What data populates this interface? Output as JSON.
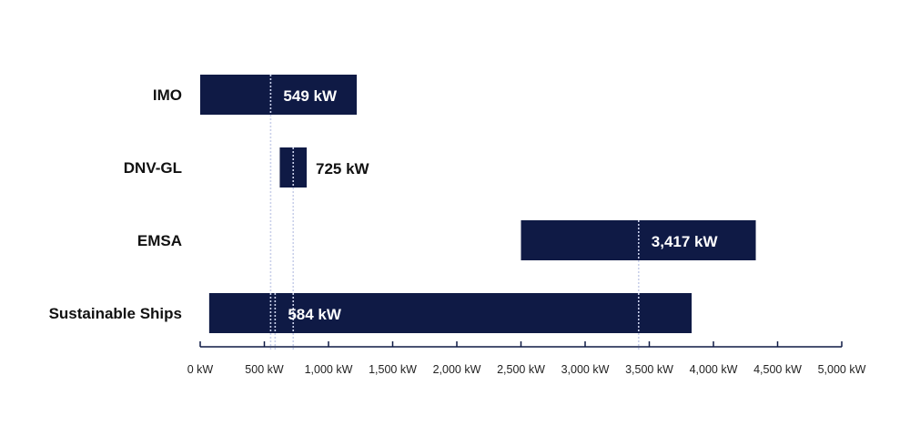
{
  "chart_data": {
    "type": "bar",
    "title": "",
    "xlabel": "",
    "ylabel": "",
    "xlim": [
      0,
      5000
    ],
    "grid": false,
    "colors": {
      "bar": "#0f1a45",
      "axis": "#0f1a45",
      "marker": "#c9d0ea",
      "label_on_bar": "#ffffff",
      "label_off_bar": "#111111"
    },
    "x_ticks": [
      0,
      500,
      1000,
      1500,
      2000,
      2500,
      3000,
      3500,
      4000,
      4500,
      5000
    ],
    "x_tick_labels": [
      "0 kW",
      "500 kW",
      "1,000 kW",
      "1,500 kW",
      "2,000 kW",
      "2,500 kW",
      "3,000 kW",
      "3,500 kW",
      "4,000 kW",
      "4,500 kW",
      "5,000 kW"
    ],
    "categories": [
      "IMO",
      "DNV-GL",
      "EMSA",
      "Sustainable Ships"
    ],
    "ranges": [
      {
        "category": "IMO",
        "start": 0,
        "end": 1220,
        "value": 549,
        "label": "549 kW",
        "label_inside": true
      },
      {
        "category": "DNV-GL",
        "start": 620,
        "end": 830,
        "value": 725,
        "label": "725 kW",
        "label_inside": false
      },
      {
        "category": "EMSA",
        "start": 2500,
        "end": 4330,
        "value": 3417,
        "label": "3,417 kW",
        "label_inside": true
      },
      {
        "category": "Sustainable Ships",
        "start": 70,
        "end": 3830,
        "value": 584,
        "label": "584 kW",
        "label_inside": true
      }
    ]
  }
}
